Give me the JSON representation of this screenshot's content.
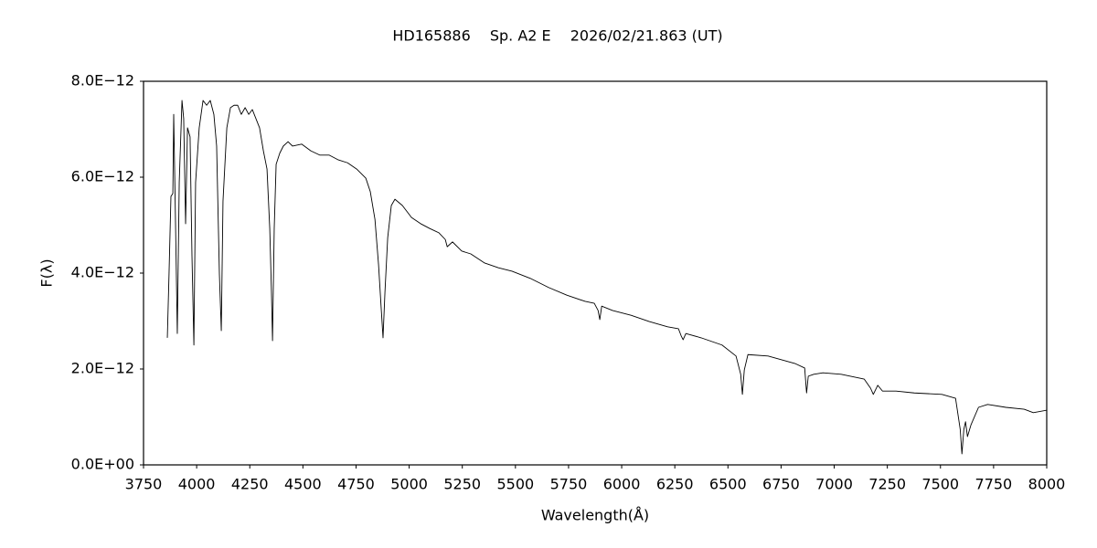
{
  "chart_data": {
    "type": "line",
    "title": "HD165886　 Sp. A2 E　 2026/02/21.863 (UT)",
    "x_label": "Wavelength(Å)",
    "y_label": "F(λ)",
    "xlim": [
      3750,
      8000
    ],
    "xticks": [
      3750,
      4000,
      4250,
      4500,
      4750,
      5000,
      5250,
      5500,
      5750,
      6000,
      6250,
      6500,
      6750,
      7000,
      7250,
      7500,
      7750,
      8000
    ],
    "ylim": [
      0,
      8e-12
    ],
    "yticks": [
      {
        "value": 0,
        "label": "0.0E+00"
      },
      {
        "value": 2e-12,
        "label": "2.0E−12"
      },
      {
        "value": 4e-12,
        "label": "4.0E−12"
      },
      {
        "value": 6e-12,
        "label": "6.0E−12"
      },
      {
        "value": 8e-12,
        "label": "8.0E−12"
      }
    ],
    "grid": false,
    "series": [
      {
        "color": "#000000",
        "x": [
          3862,
          3870,
          3879,
          3888,
          3892,
          3901,
          3909,
          3918,
          3931,
          3939,
          3948,
          3957,
          3969,
          3978,
          3987,
          3995,
          4012,
          4030,
          4047,
          4064,
          4081,
          4094,
          4107,
          4116,
          4124,
          4142,
          4159,
          4176,
          4193,
          4210,
          4228,
          4245,
          4262,
          4279,
          4296,
          4314,
          4331,
          4344,
          4352,
          4357,
          4365,
          4374,
          4391,
          4408,
          4430,
          4451,
          4494,
          4537,
          4580,
          4624,
          4667,
          4710,
          4753,
          4796,
          4817,
          4839,
          4856,
          4869,
          4877,
          4886,
          4899,
          4916,
          4933,
          4968,
          5011,
          5054,
          5097,
          5140,
          5170,
          5179,
          5204,
          5247,
          5290,
          5355,
          5420,
          5484,
          5570,
          5656,
          5742,
          5828,
          5871,
          5889,
          5897,
          5906,
          5957,
          6044,
          6130,
          6216,
          6267,
          6280,
          6289,
          6302,
          6374,
          6472,
          6538,
          6560,
          6568,
          6577,
          6594,
          6689,
          6818,
          6861,
          6870,
          6878,
          6904,
          6947,
          7033,
          7141,
          7171,
          7184,
          7205,
          7227,
          7291,
          7377,
          7507,
          7571,
          7593,
          7601,
          7610,
          7618,
          7627,
          7644,
          7679,
          7722,
          7808,
          7894,
          7937,
          7999
        ],
        "values": [
          2.65e-12,
          3.98e-12,
          5.6e-12,
          5.66e-12,
          7.31e-12,
          4.93e-12,
          2.74e-12,
          5.89e-12,
          7.6e-12,
          7.22e-12,
          5.03e-12,
          7.03e-12,
          6.84e-12,
          4.36e-12,
          2.5e-12,
          5.89e-12,
          7.03e-12,
          7.6e-12,
          7.5e-12,
          7.6e-12,
          7.31e-12,
          6.65e-12,
          3.98e-12,
          2.8e-12,
          5.5e-12,
          7.03e-12,
          7.45e-12,
          7.5e-12,
          7.5e-12,
          7.31e-12,
          7.45e-12,
          7.31e-12,
          7.41e-12,
          7.22e-12,
          7.03e-12,
          6.55e-12,
          6.17e-12,
          4.93e-12,
          3.6e-12,
          2.59e-12,
          4.93e-12,
          6.27e-12,
          6.5e-12,
          6.65e-12,
          6.74e-12,
          6.65e-12,
          6.69e-12,
          6.55e-12,
          6.46e-12,
          6.46e-12,
          6.36e-12,
          6.3e-12,
          6.17e-12,
          5.98e-12,
          5.7e-12,
          5.12e-12,
          4.17e-12,
          3.22e-12,
          2.65e-12,
          3.6e-12,
          4.74e-12,
          5.41e-12,
          5.54e-12,
          5.41e-12,
          5.16e-12,
          5.03e-12,
          4.93e-12,
          4.84e-12,
          4.7e-12,
          4.55e-12,
          4.65e-12,
          4.46e-12,
          4.4e-12,
          4.21e-12,
          4.11e-12,
          4.04e-12,
          3.89e-12,
          3.7e-12,
          3.54e-12,
          3.41e-12,
          3.37e-12,
          3.22e-12,
          3.03e-12,
          3.31e-12,
          3.22e-12,
          3.12e-12,
          2.99e-12,
          2.88e-12,
          2.84e-12,
          2.69e-12,
          2.61e-12,
          2.74e-12,
          2.65e-12,
          2.5e-12,
          2.27e-12,
          1.89e-12,
          1.47e-12,
          1.98e-12,
          2.3e-12,
          2.27e-12,
          2.11e-12,
          2.02e-12,
          1.5e-12,
          1.85e-12,
          1.89e-12,
          1.92e-12,
          1.89e-12,
          1.79e-12,
          1.6e-12,
          1.47e-12,
          1.66e-12,
          1.54e-12,
          1.54e-12,
          1.5e-12,
          1.47e-12,
          1.39e-12,
          7.4e-13,
          2.3e-13,
          7.4e-13,
          9e-13,
          5.9e-13,
          8.4e-13,
          1.2e-12,
          1.26e-12,
          1.2e-12,
          1.16e-12,
          1.09e-12,
          1.14e-12
        ]
      }
    ]
  }
}
